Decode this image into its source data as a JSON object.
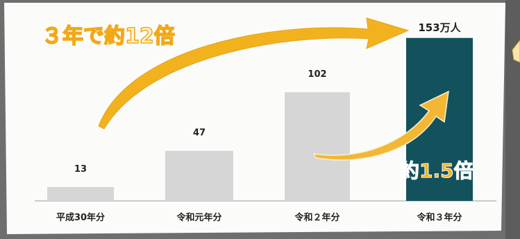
{
  "chart_data": {
    "type": "bar",
    "categories": [
      "平成30年分",
      "令和元年分",
      "令和２年分",
      "令和３年分"
    ],
    "values": [
      13,
      47,
      102,
      153
    ],
    "data_labels": [
      "13",
      "47",
      "102",
      "153万人"
    ],
    "ylim": [
      0,
      160
    ],
    "grid": false,
    "legend": "none",
    "annotations": {
      "growth_total": "３年で約12倍",
      "growth_last": "約1.5倍"
    },
    "colors": {
      "bar_default": "#d6d6d6",
      "bar_highlight": "#13525c",
      "arrow": "#f2b21e",
      "text_orange": "#f2a816"
    }
  }
}
